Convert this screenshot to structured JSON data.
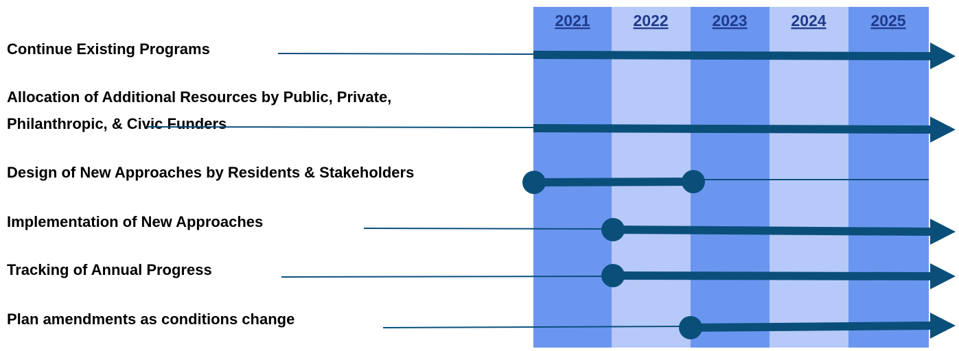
{
  "timeline": {
    "years": [
      "2021",
      "2022",
      "2023",
      "2024",
      "2025"
    ],
    "rows": [
      {
        "label": "Continue Existing Programs"
      },
      {
        "label": [
          "Allocation of Additional Resources by Public, Private,",
          "Philanthropic, & Civic Funders"
        ]
      },
      {
        "label": "Design of New Approaches by Residents & Stakeholders"
      },
      {
        "label": "Implementation of New Approaches"
      },
      {
        "label": "Tracking of Annual Progress"
      },
      {
        "label": "Plan amendments as conditions change"
      }
    ]
  }
}
